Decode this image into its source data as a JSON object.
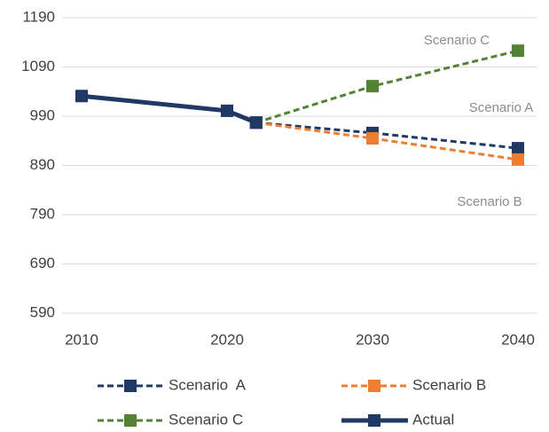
{
  "chart_data": {
    "type": "line",
    "x": [
      2010,
      2020,
      2022,
      2030,
      2040
    ],
    "xlim": [
      2010,
      2040
    ],
    "xticks": [
      2010,
      2020,
      2030,
      2040
    ],
    "ylim": [
      590,
      1190
    ],
    "yticks": [
      590,
      690,
      790,
      890,
      990,
      1090,
      1190
    ],
    "grid": true,
    "series": [
      {
        "name": "Scenario  A",
        "color": "#203864",
        "dashed": true,
        "values": [
          null,
          null,
          977,
          956,
          925
        ]
      },
      {
        "name": "Scenario B",
        "color": "#ed7d31",
        "dashed": true,
        "values": [
          null,
          null,
          977,
          945,
          902
        ]
      },
      {
        "name": "Scenario C",
        "color": "#548235",
        "dashed": true,
        "values": [
          null,
          null,
          977,
          1051,
          1123
        ]
      },
      {
        "name": "Actual",
        "color": "#1f3864",
        "dashed": false,
        "values": [
          1031,
          1001,
          977,
          null,
          null
        ]
      }
    ],
    "annotations": [
      "Scenario C",
      "Scenario A",
      "Scenario B"
    ],
    "legend": "bottom"
  }
}
